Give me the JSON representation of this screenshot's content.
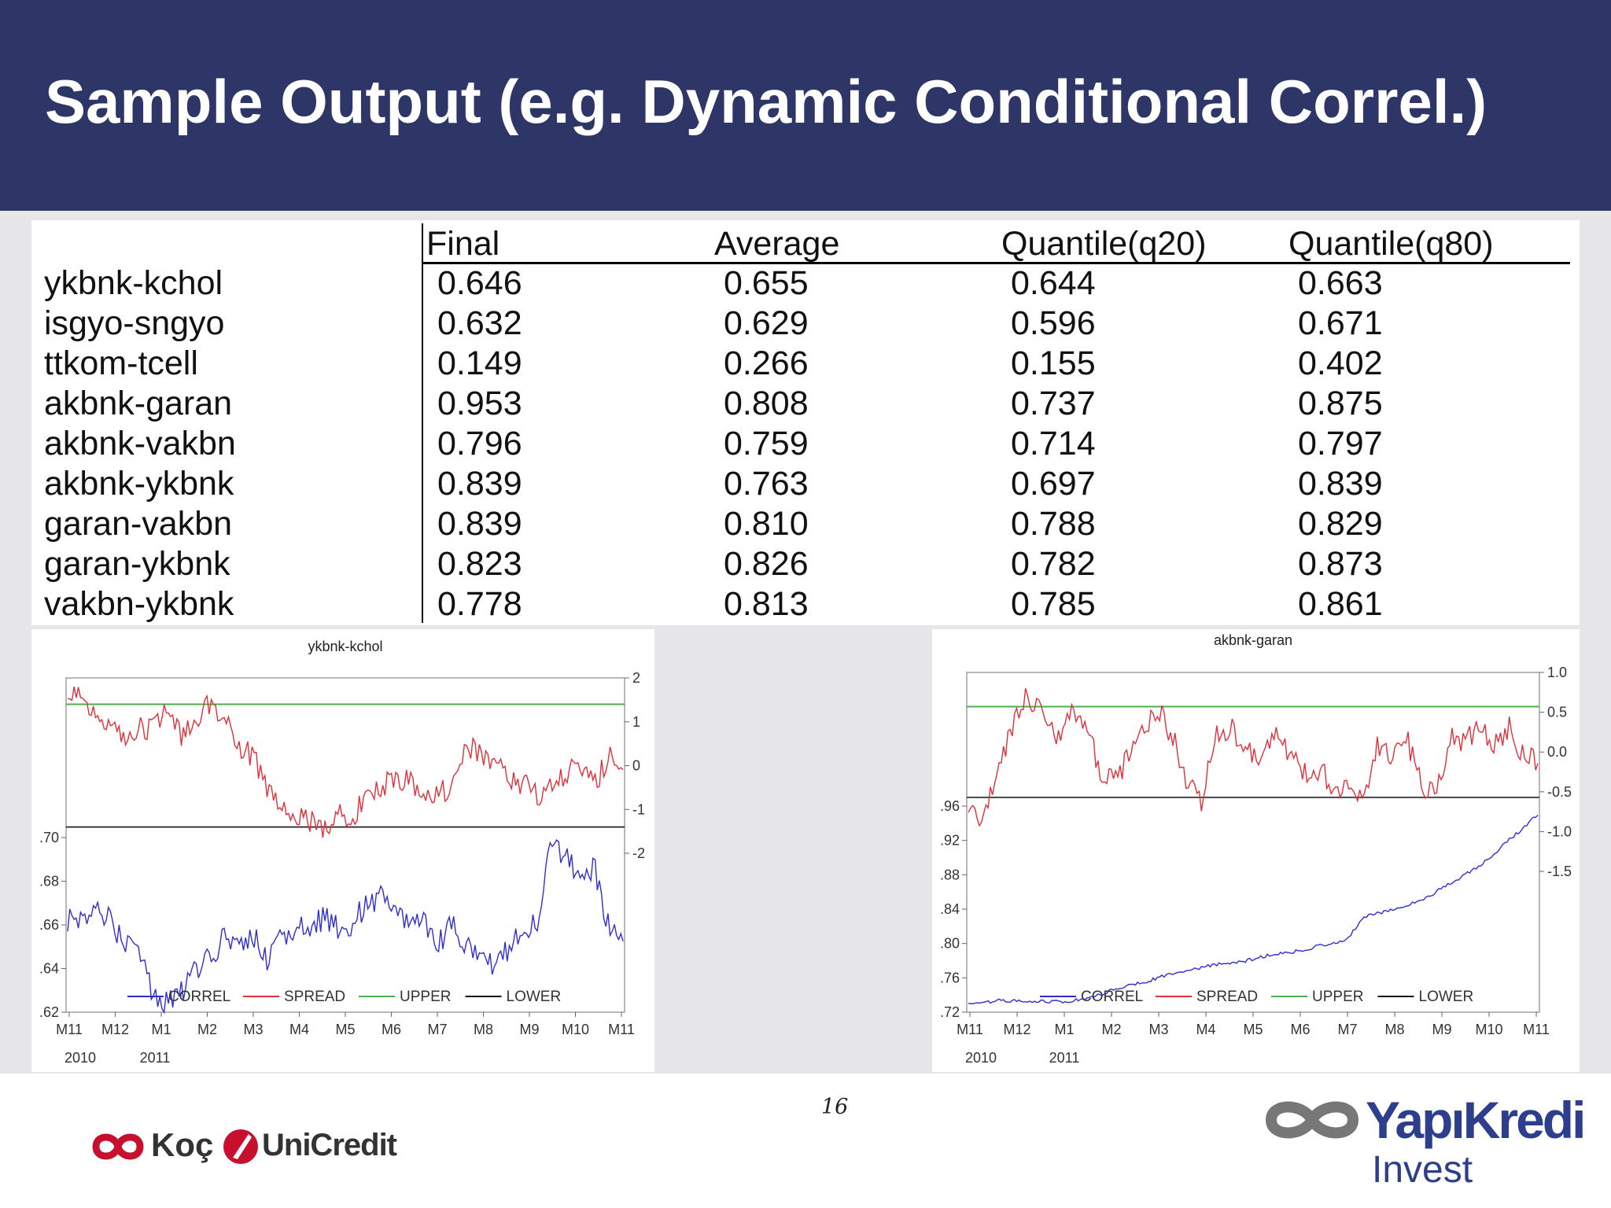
{
  "slide": {
    "title": "Sample Output (e.g. Dynamic Conditional Correl.)",
    "page_number": "16"
  },
  "table": {
    "headers": [
      "Final",
      "Average",
      "Quantile(q20)",
      "Quantile(q80)"
    ],
    "rows": [
      {
        "label": "ykbnk-kchol",
        "values": [
          "0.646",
          "0.655",
          "0.644",
          "0.663"
        ]
      },
      {
        "label": "isgyo-sngyo",
        "values": [
          "0.632",
          "0.629",
          "0.596",
          "0.671"
        ]
      },
      {
        "label": "ttkom-tcell",
        "values": [
          "0.149",
          "0.266",
          "0.155",
          "0.402"
        ]
      },
      {
        "label": "akbnk-garan",
        "values": [
          "0.953",
          "0.808",
          "0.737",
          "0.875"
        ]
      },
      {
        "label": "akbnk-vakbn",
        "values": [
          "0.796",
          "0.759",
          "0.714",
          "0.797"
        ]
      },
      {
        "label": "akbnk-ykbnk",
        "values": [
          "0.839",
          "0.763",
          "0.697",
          "0.839"
        ]
      },
      {
        "label": "garan-vakbn",
        "values": [
          "0.839",
          "0.810",
          "0.788",
          "0.829"
        ]
      },
      {
        "label": "garan-ykbnk",
        "values": [
          "0.823",
          "0.826",
          "0.782",
          "0.873"
        ]
      },
      {
        "label": "vakbn-ykbnk",
        "values": [
          "0.778",
          "0.813",
          "0.785",
          "0.861"
        ]
      }
    ]
  },
  "logos": {
    "koc": "Koç",
    "unicredit": "UniCredit",
    "yapikredi": "YapıKredi",
    "yapikredi_sub": "Invest"
  },
  "chart_data": [
    {
      "type": "line",
      "title": "ykbnk-kchol",
      "x_ticks": [
        "M11",
        "M12",
        "M1",
        "M2",
        "M3",
        "M4",
        "M5",
        "M6",
        "M7",
        "M8",
        "M9",
        "M10",
        "M11"
      ],
      "year_labels": [
        "2010",
        "2011"
      ],
      "left_ticks": [
        ".62",
        ".64",
        ".66",
        ".68",
        ".70"
      ],
      "left_range": [
        0.62,
        0.7
      ],
      "right_ticks": [
        "-2",
        "-1",
        "0",
        "1",
        "2"
      ],
      "right_range": [
        -2,
        2
      ],
      "upper": 1.4,
      "lower": -1.4,
      "legend": [
        "CORREL",
        "SPREAD",
        "UPPER",
        "LOWER"
      ],
      "correl_anchors": [
        0.663,
        0.664,
        0.668,
        0.662,
        0.652,
        0.648,
        0.628,
        0.625,
        0.63,
        0.64,
        0.645,
        0.655,
        0.65,
        0.655,
        0.643,
        0.655,
        0.66,
        0.655,
        0.665,
        0.658,
        0.66,
        0.67,
        0.672,
        0.665,
        0.662,
        0.66,
        0.65,
        0.66,
        0.652,
        0.648,
        0.64,
        0.65,
        0.66,
        0.66,
        0.698,
        0.69,
        0.685,
        0.685,
        0.66,
        0.65
      ],
      "spread_anchors": [
        1.8,
        1.6,
        1.2,
        1.0,
        0.6,
        0.9,
        0.8,
        1.5,
        0.6,
        1.1,
        1.4,
        1.2,
        0.5,
        0.2,
        -0.5,
        -0.9,
        -1.2,
        -1.3,
        -1.4,
        -1.1,
        -1.2,
        -0.7,
        -0.5,
        -0.2,
        -0.4,
        -0.6,
        -0.6,
        -0.5,
        0.5,
        0.3,
        0.1,
        -0.3,
        -0.4,
        -0.7,
        -0.5,
        -0.2,
        0.1,
        -0.5,
        0.3,
        -0.2
      ]
    },
    {
      "type": "line",
      "title": "akbnk-garan",
      "x_ticks": [
        "M11",
        "M12",
        "M1",
        "M2",
        "M3",
        "M4",
        "M5",
        "M6",
        "M7",
        "M8",
        "M9",
        "M10",
        "M11"
      ],
      "year_labels": [
        "2010",
        "2011"
      ],
      "left_ticks": [
        ".72",
        ".76",
        ".80",
        ".84",
        ".88",
        ".92",
        ".96"
      ],
      "left_range": [
        0.72,
        0.96
      ],
      "right_ticks": [
        "-1.5",
        "-1.0",
        "-0.5",
        "0.0",
        "0.5",
        "1.0"
      ],
      "right_range": [
        -1.5,
        1.0
      ],
      "upper": 0.57,
      "lower": -0.57,
      "legend": [
        "CORREL",
        "SPREAD",
        "UPPER",
        "LOWER"
      ],
      "correl_anchors": [
        0.732,
        0.73,
        0.734,
        0.733,
        0.732,
        0.733,
        0.732,
        0.733,
        0.735,
        0.74,
        0.747,
        0.752,
        0.755,
        0.76,
        0.765,
        0.768,
        0.772,
        0.775,
        0.778,
        0.78,
        0.784,
        0.787,
        0.79,
        0.793,
        0.797,
        0.8,
        0.806,
        0.83,
        0.835,
        0.84,
        0.845,
        0.85,
        0.86,
        0.87,
        0.88,
        0.89,
        0.905,
        0.92,
        0.935,
        0.95
      ],
      "spread_anchors": [
        -0.6,
        -0.9,
        -0.2,
        0.3,
        0.7,
        0.6,
        0.1,
        0.5,
        0.3,
        -0.2,
        -0.4,
        0.0,
        0.3,
        0.5,
        0.2,
        -0.4,
        -0.6,
        0.2,
        0.3,
        0.1,
        -0.2,
        0.2,
        0.0,
        -0.3,
        -0.2,
        -0.4,
        -0.5,
        -0.6,
        0.1,
        0.0,
        0.2,
        -0.4,
        -0.5,
        0.2,
        0.1,
        0.3,
        0.1,
        0.3,
        0.0,
        -0.1
      ]
    }
  ]
}
